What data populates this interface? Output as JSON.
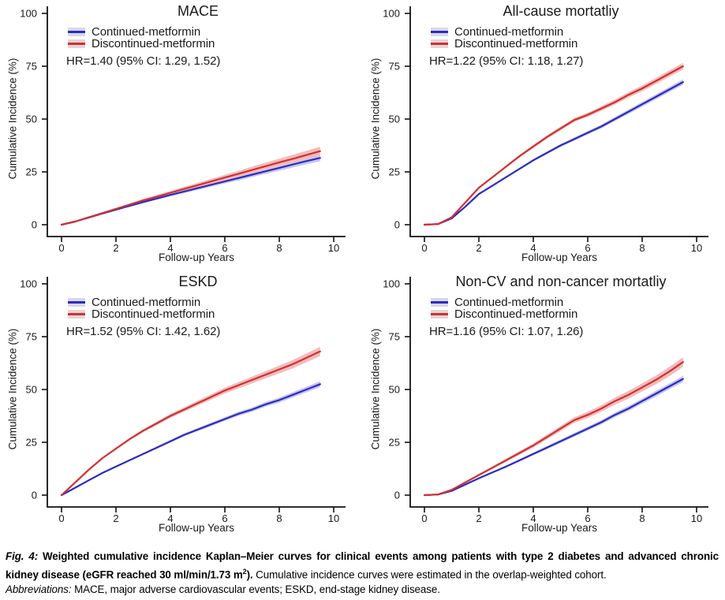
{
  "caption": {
    "fig_label": "Fig. 4:",
    "bold_main": "Weighted cumulative incidence Kaplan–Meier curves for clinical events among patients with type 2 diabetes and advanced chronic kidney disease (eGFR reached 30 ml/min/1.73 m",
    "sup": "2",
    "bold_close": ").",
    "regular": "Cumulative incidence curves were estimated in the overlap-weighted cohort.",
    "abbrev_label": "Abbreviations:",
    "abbrev_text": "MACE, major adverse cardiovascular events; ESKD, end-stage kidney disease."
  },
  "chart_data": [
    {
      "type": "line",
      "title": "MACE",
      "hr_label": "HR=1.40 (95% CI: 1.29, 1.52)",
      "xlabel": "Follow-up Years",
      "ylabel": "Cumulative Incidence (%)",
      "xlim": [
        0,
        10
      ],
      "ylim": [
        0,
        100
      ],
      "xticks": [
        0,
        2,
        4,
        6,
        8,
        10
      ],
      "yticks": [
        0,
        25,
        50,
        75,
        100
      ],
      "grid": false,
      "legend_position": "top-left",
      "series": [
        {
          "name": "Continued-metformin",
          "color": "#2B2BC3",
          "band_color": "#C7C7EE",
          "key_bg": "#D8D8E4",
          "band_end": 1.6,
          "x": [
            0,
            0.5,
            1,
            1.5,
            2,
            2.5,
            3,
            3.5,
            4,
            4.5,
            5,
            5.5,
            6,
            6.5,
            7,
            7.5,
            8,
            8.5,
            9,
            9.5
          ],
          "y": [
            0,
            1.5,
            3.4,
            5.3,
            7.1,
            8.9,
            10.7,
            12.4,
            14.1,
            15.7,
            17.3,
            18.9,
            20.5,
            22.1,
            23.7,
            25.3,
            26.9,
            28.5,
            30.1,
            31.6
          ]
        },
        {
          "name": "Discontinued-metformin",
          "color": "#D32F2F",
          "band_color": "#F3BCBC",
          "key_bg": "#E4D6D6",
          "band_end": 2.1,
          "x": [
            0,
            0.5,
            1,
            1.5,
            2,
            2.5,
            3,
            3.5,
            4,
            4.5,
            5,
            5.5,
            6,
            6.5,
            7,
            7.5,
            8,
            8.5,
            9,
            9.5
          ],
          "y": [
            0,
            1.5,
            3.5,
            5.5,
            7.5,
            9.5,
            11.5,
            13.3,
            15.1,
            16.9,
            18.7,
            20.5,
            22.3,
            24.1,
            25.9,
            27.7,
            29.5,
            31.2,
            33,
            34.8
          ]
        }
      ]
    },
    {
      "type": "line",
      "title": "All-cause mortatliy",
      "hr_label": "HR=1.22 (95% CI: 1.18, 1.27)",
      "xlabel": "Follow-up Years",
      "ylabel": "Cumulative Incidence (%)",
      "xlim": [
        0,
        10
      ],
      "ylim": [
        0,
        100
      ],
      "xticks": [
        0,
        2,
        4,
        6,
        8,
        10
      ],
      "yticks": [
        0,
        25,
        50,
        75,
        100
      ],
      "grid": false,
      "legend_position": "top-left",
      "series": [
        {
          "name": "Continued-metformin",
          "color": "#2B2BC3",
          "band_color": "#C7C7EE",
          "key_bg": "#D8D8E4",
          "band_end": 1.3,
          "x": [
            0,
            0.5,
            1,
            1.5,
            2,
            2.5,
            3,
            3.5,
            4,
            4.5,
            5,
            5.5,
            6,
            6.5,
            7,
            7.5,
            8,
            8.5,
            9,
            9.5
          ],
          "y": [
            0,
            0.3,
            3,
            8.5,
            14.5,
            18.5,
            22.5,
            26.5,
            30.5,
            34,
            37.5,
            40.5,
            43.5,
            46.5,
            50,
            53.5,
            57,
            60.5,
            64,
            67.5
          ]
        },
        {
          "name": "Discontinued-metformin",
          "color": "#D32F2F",
          "band_color": "#F3BCBC",
          "key_bg": "#E4D6D6",
          "band_end": 1.6,
          "x": [
            0,
            0.5,
            1,
            1.5,
            2,
            2.5,
            3,
            3.5,
            4,
            4.5,
            5,
            5.5,
            6,
            6.5,
            7,
            7.5,
            8,
            8.5,
            9,
            9.5
          ],
          "y": [
            0,
            0.3,
            3.5,
            10.5,
            17.5,
            22.5,
            27.5,
            32.5,
            37,
            41.5,
            45.5,
            49.5,
            52,
            55,
            58,
            61.5,
            64.5,
            68,
            71.5,
            75
          ]
        }
      ]
    },
    {
      "type": "line",
      "title": "ESKD",
      "hr_label": "HR=1.52 (95% CI: 1.42, 1.62)",
      "xlabel": "Follow-up Years",
      "ylabel": "Cumulative Incidence (%)",
      "xlim": [
        0,
        10
      ],
      "ylim": [
        0,
        100
      ],
      "xticks": [
        0,
        2,
        4,
        6,
        8,
        10
      ],
      "yticks": [
        0,
        25,
        50,
        75,
        100
      ],
      "grid": false,
      "legend_position": "top-left",
      "series": [
        {
          "name": "Continued-metformin",
          "color": "#2B2BC3",
          "band_color": "#C7C7EE",
          "key_bg": "#D8D8E4",
          "band_end": 1.4,
          "x": [
            0,
            0.5,
            1,
            1.5,
            2,
            2.5,
            3,
            3.5,
            4,
            4.5,
            5,
            5.5,
            6,
            6.5,
            7,
            7.5,
            8,
            8.5,
            9,
            9.5
          ],
          "y": [
            0,
            3.5,
            7,
            10.5,
            13.5,
            16.5,
            19.5,
            22.5,
            25.5,
            28.5,
            31,
            33.5,
            36,
            38.5,
            40.5,
            43,
            45,
            47.5,
            50,
            52.5
          ]
        },
        {
          "name": "Discontinued-metformin",
          "color": "#D32F2F",
          "band_color": "#F3BCBC",
          "key_bg": "#E4D6D6",
          "band_end": 2.2,
          "x": [
            0,
            0.5,
            1,
            1.5,
            2,
            2.5,
            3,
            3.5,
            4,
            4.5,
            5,
            5.5,
            6,
            6.5,
            7,
            7.5,
            8,
            8.5,
            9,
            9.5
          ],
          "y": [
            0,
            6,
            12,
            17.5,
            22,
            26.5,
            30.5,
            34,
            37.5,
            40.5,
            43.5,
            46.5,
            49.5,
            52,
            54.5,
            57,
            59.5,
            62,
            65,
            68
          ]
        }
      ]
    },
    {
      "type": "line",
      "title": "Non-CV and non-cancer mortatliy",
      "hr_label": "HR=1.16 (95% CI: 1.07, 1.26)",
      "xlabel": "Follow-up Years",
      "ylabel": "Cumulative Incidence (%)",
      "xlim": [
        0,
        10
      ],
      "ylim": [
        0,
        100
      ],
      "xticks": [
        0,
        2,
        4,
        6,
        8,
        10
      ],
      "yticks": [
        0,
        25,
        50,
        75,
        100
      ],
      "grid": false,
      "legend_position": "top-left",
      "series": [
        {
          "name": "Continued-metformin",
          "color": "#2B2BC3",
          "band_color": "#C7C7EE",
          "key_bg": "#D8D8E4",
          "band_end": 1.5,
          "x": [
            0,
            0.5,
            1,
            1.5,
            2,
            2.5,
            3,
            3.5,
            4,
            4.5,
            5,
            5.5,
            6,
            6.5,
            7,
            7.5,
            8,
            8.5,
            9,
            9.5
          ],
          "y": [
            0,
            0.3,
            2,
            5,
            8,
            10.8,
            13.5,
            16.5,
            19.5,
            22.5,
            25.5,
            28.5,
            31.5,
            34.5,
            38,
            41,
            44.5,
            48,
            51.5,
            55
          ]
        },
        {
          "name": "Discontinued-metformin",
          "color": "#D32F2F",
          "band_color": "#F3BCBC",
          "key_bg": "#E4D6D6",
          "band_end": 2.3,
          "x": [
            0,
            0.5,
            1,
            1.5,
            2,
            2.5,
            3,
            3.5,
            4,
            4.5,
            5,
            5.5,
            6,
            6.5,
            7,
            7.5,
            8,
            8.5,
            9,
            9.5
          ],
          "y": [
            0,
            0.3,
            2.5,
            6,
            9.5,
            13,
            16.5,
            20,
            23.5,
            27.5,
            31.5,
            35.5,
            38,
            41,
            44.5,
            47.5,
            51,
            54.5,
            58.5,
            63
          ]
        }
      ]
    }
  ]
}
